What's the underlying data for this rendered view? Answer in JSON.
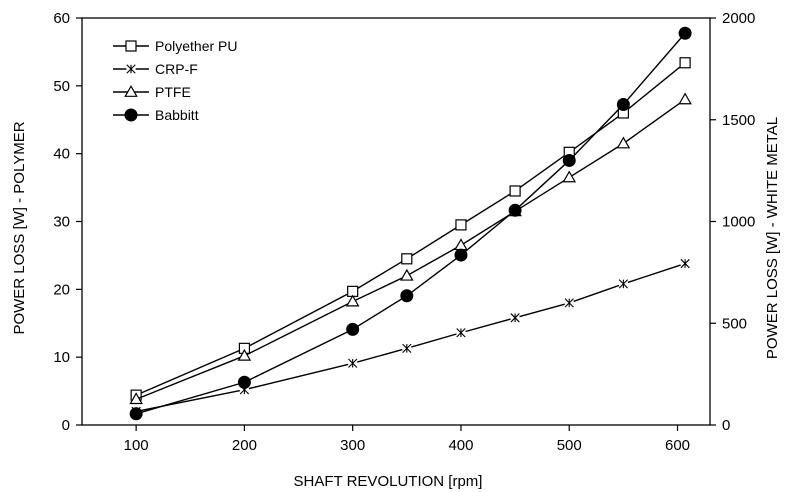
{
  "chart_data": {
    "type": "line",
    "xlabel": "SHAFT REVOLUTION [rpm]",
    "ylabel_left": "POWER LOSS [W] - POLYMER",
    "ylabel_right": "POWER LOSS [W] - WHITE METAL",
    "xlim": [
      50,
      630
    ],
    "ylim_left": [
      0,
      60
    ],
    "ylim_right": [
      0,
      2000
    ],
    "x_ticks": [
      100,
      200,
      300,
      400,
      500,
      600
    ],
    "y_left_ticks": [
      0,
      10,
      20,
      30,
      40,
      50,
      60
    ],
    "y_right_ticks": [
      0,
      500,
      1000,
      1500,
      2000
    ],
    "legend_position": "top-left",
    "grid": false,
    "series": [
      {
        "name": "Polyether PU",
        "marker": "square",
        "axis": "left",
        "x": [
          100,
          200,
          300,
          350,
          400,
          450,
          500,
          550,
          607
        ],
        "y": [
          4.4,
          11.3,
          19.7,
          24.5,
          29.5,
          34.5,
          40.2,
          46.0,
          53.4
        ]
      },
      {
        "name": "CRP-F",
        "marker": "cross",
        "axis": "left",
        "x": [
          100,
          200,
          300,
          350,
          400,
          450,
          500,
          550,
          607
        ],
        "y": [
          2.0,
          5.2,
          9.1,
          11.3,
          13.6,
          15.8,
          18.0,
          20.8,
          23.8
        ]
      },
      {
        "name": "PTFE",
        "marker": "triangle",
        "axis": "left",
        "x": [
          100,
          200,
          300,
          350,
          400,
          450,
          500,
          550,
          607
        ],
        "y": [
          3.8,
          10.2,
          18.2,
          22.0,
          26.5,
          31.5,
          36.5,
          41.5,
          48.0
        ]
      },
      {
        "name": "Babbitt",
        "marker": "filled-circle",
        "axis": "right",
        "x": [
          100,
          200,
          300,
          350,
          400,
          450,
          500,
          550,
          607
        ],
        "y": [
          55,
          210,
          470,
          635,
          835,
          1055,
          1300,
          1575,
          1925
        ]
      }
    ]
  }
}
